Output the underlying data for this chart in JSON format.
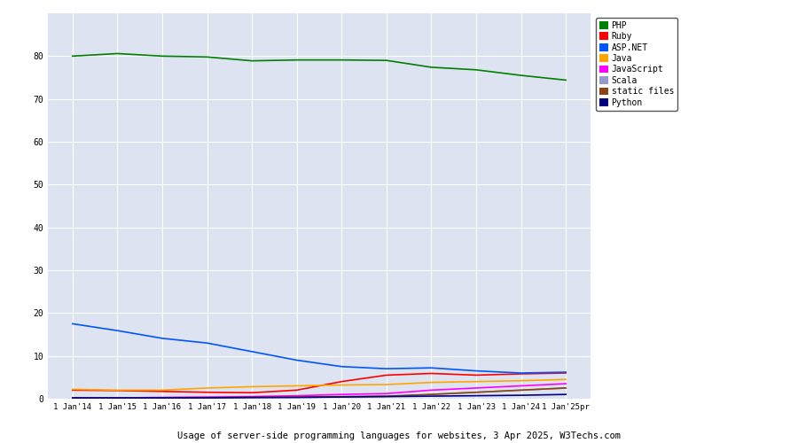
{
  "title": "Usage of server-side programming languages for websites, 3 Apr 2025, W3Techs.com",
  "background_color": "#dde3f0",
  "years": [
    2014,
    2015,
    2016,
    2017,
    2018,
    2019,
    2020,
    2021,
    2022,
    2023,
    2024,
    2025
  ],
  "series": {
    "PHP": {
      "color": "#008000",
      "values": [
        80.0,
        80.6,
        80.0,
        79.8,
        78.9,
        79.1,
        79.1,
        79.0,
        77.4,
        76.8,
        75.5,
        74.4
      ]
    },
    "Ruby": {
      "color": "#ff0000",
      "values": [
        2.0,
        1.9,
        1.7,
        1.5,
        1.4,
        2.0,
        4.0,
        5.5,
        5.9,
        5.5,
        5.8,
        6.0
      ]
    },
    "ASP.NET": {
      "color": "#0055ff",
      "values": [
        17.5,
        15.9,
        14.1,
        13.0,
        11.0,
        9.0,
        7.5,
        7.0,
        7.2,
        6.5,
        6.0,
        6.2
      ]
    },
    "Java": {
      "color": "#ffa500",
      "values": [
        2.2,
        2.0,
        2.0,
        2.5,
        2.8,
        3.0,
        3.2,
        3.3,
        3.8,
        4.0,
        4.2,
        4.5
      ]
    },
    "JavaScript": {
      "color": "#ff00ff",
      "values": [
        0.2,
        0.2,
        0.3,
        0.4,
        0.5,
        0.7,
        1.0,
        1.2,
        2.0,
        2.5,
        3.0,
        3.5
      ]
    },
    "Scala": {
      "color": "#9999cc",
      "values": [
        0.1,
        0.1,
        0.1,
        0.1,
        0.2,
        0.3,
        0.4,
        0.5,
        1.0,
        1.5,
        2.0,
        2.5
      ]
    },
    "static files": {
      "color": "#8b4513",
      "values": [
        0.1,
        0.1,
        0.1,
        0.2,
        0.3,
        0.4,
        0.5,
        0.6,
        1.0,
        1.5,
        2.0,
        2.5
      ]
    },
    "Python": {
      "color": "#000080",
      "values": [
        0.2,
        0.2,
        0.2,
        0.2,
        0.3,
        0.3,
        0.4,
        0.5,
        0.6,
        0.7,
        0.8,
        1.0
      ]
    }
  },
  "ylim": [
    0,
    90
  ],
  "yticks": [
    0,
    10,
    20,
    30,
    40,
    50,
    60,
    70,
    80
  ],
  "xtick_labels": [
    "1 Jan'14",
    "1 Jan'15",
    "1 Jan'16",
    "1 Jan'17",
    "1 Jan'18",
    "1 Jan'19",
    "1 Jan'20",
    "1 Jan'21",
    "1 Jan'22",
    "1 Jan'23",
    "1 Jan'24",
    "1 Jan'25pr"
  ],
  "grid_color": "#ffffff",
  "legend_order": [
    "PHP",
    "Ruby",
    "ASP.NET",
    "Java",
    "JavaScript",
    "Scala",
    "static files",
    "Python"
  ],
  "figsize": [
    9.0,
    5.0
  ],
  "dpi": 100
}
